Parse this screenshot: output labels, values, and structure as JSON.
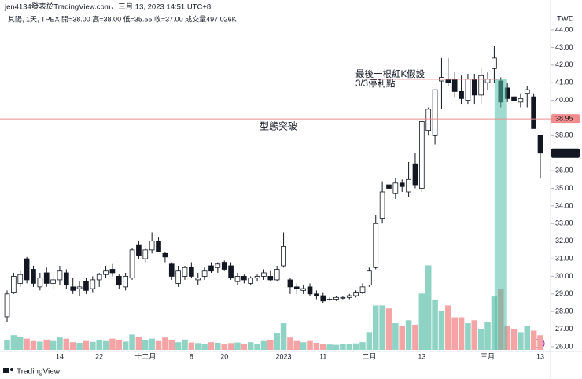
{
  "chart_data": {
    "type": "candlestick",
    "title": "jen4134發表於TradingView.com，三月 13, 2023 14:51 UTC+8",
    "subtitle": "其陽, 1天, TPEX 開=38.00 高=38.00 低=35.55 收=37.00 成交量497.026K",
    "currency": "TWD",
    "logo": "TradingView",
    "categories": [
      null,
      null,
      null,
      null,
      null,
      null,
      null,
      null,
      "14",
      null,
      null,
      null,
      null,
      null,
      "22",
      null,
      null,
      null,
      null,
      null,
      null,
      "十二月",
      null,
      null,
      null,
      null,
      null,
      null,
      "8",
      null,
      null,
      null,
      null,
      "20",
      null,
      null,
      null,
      null,
      null,
      null,
      null,
      null,
      "2023",
      null,
      null,
      null,
      null,
      null,
      "11",
      null,
      null,
      null,
      null,
      null,
      null,
      "二月",
      null,
      null,
      null,
      null,
      null,
      null,
      null,
      "13",
      null,
      null,
      null,
      null,
      null,
      null,
      null,
      null,
      null,
      "三月",
      null,
      null,
      null,
      null,
      null,
      null,
      null,
      "13"
    ],
    "open": [
      27.7,
      29.1,
      29.6,
      31.0,
      30.4,
      29.4,
      30.2,
      29.6,
      29.8,
      30.2,
      29.4,
      29.3,
      29.7,
      29.3,
      29.8,
      30.1,
      30.4,
      30.0,
      29.4,
      29.9,
      31.8,
      31.0,
      31.5,
      32.0,
      31.3,
      30.7,
      29.6,
      30.0,
      30.5,
      29.8,
      30.0,
      30.6,
      30.5,
      30.8,
      30.6,
      29.7,
      30.0,
      29.6,
      29.9,
      30.0,
      30.0,
      29.8,
      30.6,
      29.8,
      29.4,
      29.2,
      29.4,
      29.0,
      28.9,
      28.7,
      28.7,
      28.8,
      28.8,
      28.9,
      29.1,
      29.5,
      30.5,
      33.3,
      35.2,
      34.7,
      35.3,
      34.8,
      36.4,
      35.0,
      38.3,
      38.0,
      41.1,
      41.2,
      41.2,
      40.5,
      40.0,
      41.2,
      40.3,
      41.0,
      41.8,
      41.1,
      40.7,
      40.2,
      39.9,
      40.4,
      40.2,
      38.0
    ],
    "high": [
      29.2,
      30.2,
      30.3,
      31.1,
      30.6,
      30.2,
      30.5,
      30.0,
      30.6,
      30.4,
      29.9,
      29.7,
      29.9,
      30.0,
      30.2,
      30.6,
      30.7,
      30.1,
      30.2,
      31.6,
      32.0,
      31.6,
      32.5,
      32.2,
      31.4,
      30.8,
      30.6,
      30.6,
      30.8,
      30.2,
      30.5,
      30.8,
      30.8,
      30.9,
      30.8,
      30.2,
      30.1,
      30.0,
      30.1,
      30.4,
      30.3,
      30.6,
      32.5,
      29.9,
      29.6,
      29.5,
      29.6,
      29.2,
      29.1,
      28.8,
      28.9,
      28.9,
      29.0,
      29.2,
      29.6,
      30.5,
      33.5,
      35.4,
      35.5,
      35.6,
      35.5,
      36.5,
      37.0,
      38.8,
      39.6,
      40.6,
      42.4,
      42.4,
      41.6,
      41.4,
      41.5,
      41.5,
      41.8,
      41.6,
      43.1,
      41.3,
      41.0,
      40.5,
      40.4,
      40.8,
      40.4,
      38.0
    ],
    "low": [
      27.4,
      29.0,
      29.4,
      29.6,
      29.4,
      29.2,
      29.4,
      29.3,
      29.5,
      29.3,
      29.0,
      28.9,
      29.0,
      29.1,
      29.4,
      29.9,
      30.0,
      29.3,
      29.2,
      29.8,
      31.0,
      30.8,
      31.3,
      31.5,
      30.8,
      29.8,
      29.4,
      29.8,
      29.9,
      29.5,
      29.8,
      30.2,
      30.2,
      30.3,
      29.8,
      29.5,
      29.6,
      29.5,
      29.7,
      29.8,
      29.7,
      29.7,
      30.5,
      29.0,
      29.0,
      29.0,
      28.9,
      28.7,
      28.5,
      28.6,
      28.6,
      28.7,
      28.7,
      28.8,
      29.0,
      29.4,
      30.4,
      33.0,
      34.6,
      34.4,
      34.8,
      34.5,
      35.0,
      34.8,
      38.0,
      37.5,
      39.5,
      40.8,
      40.2,
      39.8,
      39.8,
      39.8,
      39.8,
      40.6,
      41.0,
      39.6,
      39.9,
      39.9,
      39.6,
      39.6,
      38.4,
      35.55
    ],
    "close": [
      29.0,
      30.0,
      30.1,
      29.8,
      29.6,
      29.9,
      29.6,
      29.8,
      30.3,
      29.5,
      29.2,
      29.4,
      29.2,
      29.8,
      30.1,
      30.3,
      30.2,
      29.5,
      30.0,
      31.5,
      31.2,
      31.5,
      32.0,
      31.4,
      31.1,
      30.0,
      30.3,
      30.5,
      30.0,
      29.9,
      30.3,
      30.3,
      30.7,
      30.4,
      29.9,
      30.0,
      29.8,
      29.9,
      30.0,
      30.2,
      29.8,
      30.4,
      31.7,
      29.4,
      29.3,
      29.3,
      29.0,
      28.9,
      28.6,
      28.7,
      28.8,
      28.8,
      28.9,
      29.1,
      29.4,
      30.3,
      33.0,
      34.8,
      35.0,
      35.3,
      35.1,
      35.5,
      35.2,
      38.8,
      39.5,
      40.6,
      41.3,
      41.0,
      40.5,
      40.1,
      41.2,
      40.3,
      41.4,
      41.2,
      42.4,
      39.9,
      40.1,
      40.0,
      40.1,
      40.6,
      38.4,
      37.0
    ],
    "volume": [
      330,
      500,
      450,
      380,
      300,
      280,
      350,
      300,
      420,
      380,
      260,
      240,
      300,
      270,
      330,
      300,
      380,
      340,
      280,
      520,
      430,
      340,
      380,
      300,
      420,
      330,
      260,
      350,
      250,
      230,
      200,
      260,
      240,
      200,
      230,
      250,
      210,
      260,
      200,
      300,
      320,
      560,
      900,
      420,
      300,
      260,
      300,
      240,
      200,
      180,
      170,
      200,
      190,
      220,
      260,
      600,
      1500,
      1500,
      1400,
      900,
      800,
      1000,
      850,
      1900,
      2850,
      1700,
      1300,
      1500,
      1100,
      1100,
      900,
      1000,
      700,
      950,
      1800,
      2050,
      800,
      700,
      600,
      800,
      650,
      497.026
    ],
    "up_color": "#ffffff",
    "down_color": "#131722",
    "vol_up_color": "#8fd3c5",
    "vol_down_color": "#f4a4a4",
    "ylim": [
      25.82,
      44.36
    ],
    "y2lim": [
      0,
      11000
    ],
    "yticks": [
      {
        "value": 26,
        "label": "26.00"
      },
      {
        "value": 27,
        "label": "27.00"
      },
      {
        "value": 28,
        "label": "28.00"
      },
      {
        "value": 29,
        "label": "29.00"
      },
      {
        "value": 30,
        "label": "30.00"
      },
      {
        "value": 31,
        "label": "31.00"
      },
      {
        "value": 32,
        "label": "32.00"
      },
      {
        "value": 33,
        "label": "33.00"
      },
      {
        "value": 34,
        "label": "34.00"
      },
      {
        "value": 35,
        "label": "35.00"
      },
      {
        "value": 36,
        "label": "36.00"
      },
      {
        "value": 37,
        "label": "37.00"
      },
      {
        "value": 38,
        "label": "38.00"
      },
      {
        "value": 39,
        "label": "39.00"
      },
      {
        "value": 40,
        "label": "40.00"
      },
      {
        "value": 41,
        "label": "41.00"
      },
      {
        "value": 42,
        "label": "42.00"
      },
      {
        "value": 43,
        "label": "43.00"
      },
      {
        "value": 44,
        "label": "44.00"
      }
    ],
    "breakout": {
      "value": 38.95,
      "label": "型態突破",
      "color": "#f08c8c"
    },
    "note": {
      "value": 41.2,
      "lines": [
        "最後一根紅K假設",
        "3/3停利點"
      ],
      "color": "#f08c8c"
    },
    "highlight": {
      "index": 75,
      "color": "rgba(80,190,165,0.55)"
    },
    "last_price": {
      "value": 37,
      "label": "37.00"
    }
  }
}
